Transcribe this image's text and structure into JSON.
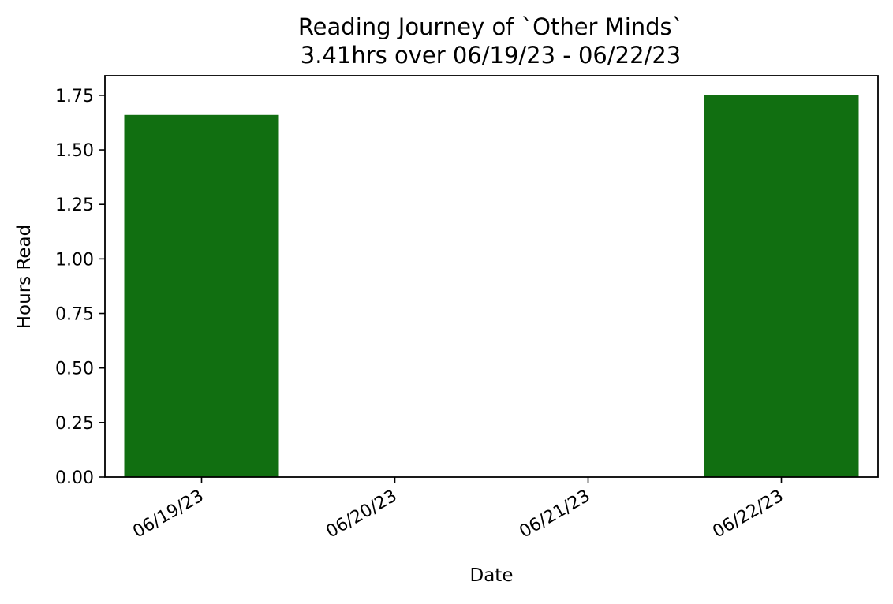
{
  "chart_data": {
    "type": "bar",
    "title": "Reading Journey of `Other Minds`",
    "subtitle": "3.41hrs over 06/19/23 - 06/22/23",
    "xlabel": "Date",
    "ylabel": "Hours Read",
    "categories": [
      "06/19/23",
      "06/20/23",
      "06/21/23",
      "06/22/23"
    ],
    "values": [
      1.66,
      0,
      0,
      1.75
    ],
    "ylim": [
      0,
      1.84
    ],
    "yticks": [
      "0.00",
      "0.25",
      "0.50",
      "0.75",
      "1.00",
      "1.25",
      "1.50",
      "1.75"
    ],
    "bar_color": "#116f11",
    "grid": false
  }
}
